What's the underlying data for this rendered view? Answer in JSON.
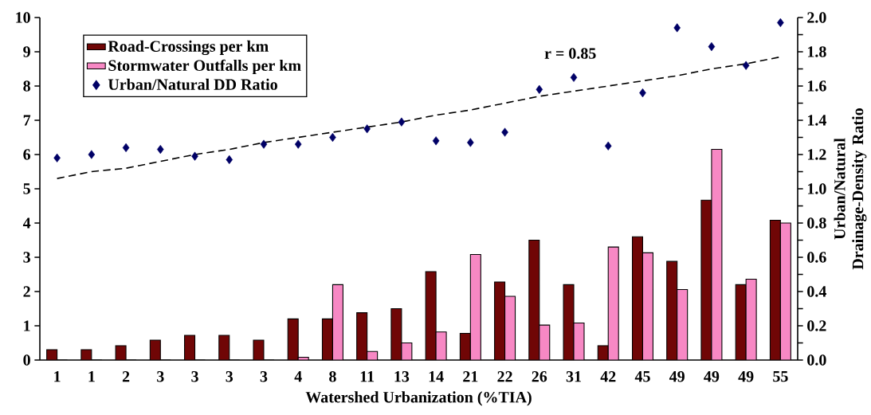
{
  "chart_data": {
    "type": "bar",
    "categories": [
      "1",
      "1",
      "2",
      "3",
      "3",
      "3",
      "3",
      "4",
      "8",
      "11",
      "13",
      "14",
      "21",
      "22",
      "26",
      "31",
      "42",
      "45",
      "49",
      "49",
      "49",
      "55"
    ],
    "xlabel": "Watershed Urbanization (%TIA)",
    "y2label": "Urban/Natural Drainage-Density Ratio",
    "ylim": [
      0,
      10
    ],
    "yticks": [
      0,
      1,
      2,
      3,
      4,
      5,
      6,
      7,
      8,
      9,
      10
    ],
    "y2lim": [
      0,
      2
    ],
    "y2ticks": [
      {
        "value": 0,
        "label": "0.0"
      },
      {
        "value": 0.1,
        "label": null
      },
      {
        "value": 0.2,
        "label": "0.2"
      },
      {
        "value": 0.3,
        "label": null
      },
      {
        "value": 0.4,
        "label": "0.4"
      },
      {
        "value": 0.5,
        "label": null
      },
      {
        "value": 0.6,
        "label": "0.6"
      },
      {
        "value": 0.7,
        "label": null
      },
      {
        "value": 0.8,
        "label": "0.8"
      },
      {
        "value": 0.9,
        "label": null
      },
      {
        "value": 1.0,
        "label": "1.0"
      },
      {
        "value": 1.1,
        "label": null
      },
      {
        "value": 1.2,
        "label": "1.2"
      },
      {
        "value": 1.3,
        "label": null
      },
      {
        "value": 1.4,
        "label": "1.4"
      },
      {
        "value": 1.5,
        "label": null
      },
      {
        "value": 1.6,
        "label": "1.6"
      },
      {
        "value": 1.7,
        "label": null
      },
      {
        "value": 1.8,
        "label": "1.8"
      },
      {
        "value": 1.9,
        "label": null
      },
      {
        "value": 2.0,
        "label": "2.0"
      }
    ],
    "legend": "top left",
    "annotations": [
      "r = 0.85"
    ],
    "series": [
      {
        "name": "Road-Crossings per km",
        "color": "#700606",
        "values": [
          0.3,
          0.3,
          0.42,
          0.58,
          0.72,
          0.72,
          0.58,
          1.2,
          1.2,
          1.38,
          1.5,
          2.58,
          0.78,
          2.28,
          3.5,
          2.2,
          0.42,
          3.6,
          2.88,
          4.67,
          2.2,
          4.08
        ]
      },
      {
        "name": "Stormwater Outfalls per km",
        "color": "#f788c4",
        "values": [
          0,
          0,
          0,
          0,
          0,
          0,
          0,
          0.08,
          2.2,
          0.25,
          0.5,
          0.82,
          3.08,
          1.86,
          1.02,
          1.08,
          3.3,
          3.13,
          2.06,
          6.15,
          2.36,
          4.0
        ]
      },
      {
        "name": "Urban/Natural DD Ratio",
        "type": "scatter",
        "axis": "y2",
        "marker": "diamond",
        "color": "#000066",
        "values": [
          1.18,
          1.2,
          1.24,
          1.23,
          1.19,
          1.17,
          1.26,
          1.26,
          1.3,
          1.35,
          1.39,
          1.28,
          1.27,
          1.33,
          1.58,
          1.65,
          1.25,
          1.56,
          1.94,
          1.83,
          1.72,
          1.97
        ]
      },
      {
        "type": "line",
        "axis": "y2",
        "line_style": "dashed",
        "marker": "none",
        "color": "#000000",
        "values": [
          1.06,
          1.1,
          1.12,
          1.16,
          1.2,
          1.23,
          1.27,
          1.3,
          1.33,
          1.36,
          1.39,
          1.43,
          1.46,
          1.5,
          1.54,
          1.57,
          1.6,
          1.63,
          1.66,
          1.7,
          1.73,
          1.77
        ]
      }
    ]
  }
}
